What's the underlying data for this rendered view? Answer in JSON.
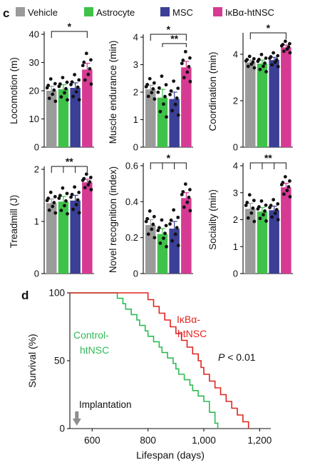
{
  "panel_labels": {
    "c": "c",
    "d": "d"
  },
  "colors": {
    "Vehicle": "#9b9b9b",
    "Astrocyte": "#3ec24a",
    "MSC": "#3b3f96",
    "IκBα-htNSC": "#d63a93",
    "survival_control": "#2dbb55",
    "survival_ikba": "#e0251f"
  },
  "chart_data": [
    {
      "type": "bar",
      "ylabel": "Locomotion (m)",
      "ylim": [
        0,
        40
      ],
      "categories": [
        "Vehicle",
        "Astrocyte",
        "MSC",
        "IκBα-htNSC"
      ],
      "values": [
        20,
        20.5,
        21,
        27.5
      ],
      "errors": [
        1.6,
        1.6,
        1.8,
        2.2
      ],
      "yticks": [
        "0",
        "10",
        "20",
        "30",
        "40"
      ],
      "significance": [
        {
          "from": 0,
          "to": 3,
          "label": "*"
        }
      ]
    },
    {
      "type": "bar",
      "ylabel": "Muscle endurance (min)",
      "ylim": [
        0,
        4
      ],
      "categories": [
        "Vehicle",
        "Astrocyte",
        "MSC",
        "IκBα-htNSC"
      ],
      "values": [
        2.1,
        1.8,
        1.75,
        2.9
      ],
      "errors": [
        0.15,
        0.3,
        0.25,
        0.22
      ],
      "yticks": [
        "0",
        "1",
        "2",
        "3",
        "4"
      ],
      "significance": [
        {
          "from": 0,
          "to": 3,
          "label": "*"
        },
        {
          "from": 1,
          "to": 3,
          "label": "**"
        }
      ]
    },
    {
      "type": "bar",
      "ylabel": "Coordination (min)",
      "ylim": [
        0,
        4.8
      ],
      "categories": [
        "Vehicle",
        "Astrocyte",
        "MSC",
        "IκBα-htNSC"
      ],
      "values": [
        3.65,
        3.6,
        3.75,
        4.3
      ],
      "errors": [
        0.1,
        0.15,
        0.12,
        0.1
      ],
      "yticks": [
        "0",
        "2",
        "4"
      ],
      "significance": [
        {
          "from": 0,
          "to": 3,
          "label": "*"
        }
      ]
    },
    {
      "type": "bar",
      "ylabel": "Treadmill (J)",
      "ylim": [
        0,
        2
      ],
      "categories": [
        "Vehicle",
        "Astrocyte",
        "MSC",
        "IκBα-htNSC"
      ],
      "values": [
        1.35,
        1.38,
        1.4,
        1.75
      ],
      "errors": [
        0.08,
        0.1,
        0.1,
        0.06
      ],
      "yticks": [
        "0",
        "1",
        "2"
      ],
      "significance": [
        {
          "from": 0,
          "to": 3,
          "label": "**"
        }
      ]
    },
    {
      "type": "bar",
      "ylabel": "Novel recognition (index)",
      "ylim": [
        0,
        0.6
      ],
      "categories": [
        "Vehicle",
        "Astrocyte",
        "MSC",
        "IκBα-htNSC"
      ],
      "values": [
        0.27,
        0.22,
        0.25,
        0.42
      ],
      "errors": [
        0.03,
        0.03,
        0.04,
        0.03
      ],
      "yticks": [
        "0",
        "0.2",
        "0.4",
        "0.6"
      ],
      "significance": [
        {
          "from": 0,
          "to": 3,
          "label": "*"
        }
      ]
    },
    {
      "type": "bar",
      "ylabel": "Sociality (min)",
      "ylim": [
        0,
        4
      ],
      "categories": [
        "Vehicle",
        "Astrocyte",
        "MSC",
        "IκBα-htNSC"
      ],
      "values": [
        2.4,
        2.3,
        2.35,
        3.2
      ],
      "errors": [
        0.2,
        0.15,
        0.15,
        0.15
      ],
      "yticks": [
        "0",
        "1",
        "2",
        "3",
        "4"
      ],
      "significance": [
        {
          "from": 0,
          "to": 3,
          "label": "**"
        }
      ]
    },
    {
      "type": "line",
      "xlabel": "Lifespan (days)",
      "ylabel": "Survival (%)",
      "xlim": [
        520,
        1240
      ],
      "ylim": [
        0,
        100
      ],
      "xticks": [
        "600",
        "800",
        "1,000",
        "1,200"
      ],
      "xtick_values": [
        600,
        800,
        1000,
        1200
      ],
      "yticks": [
        "0",
        "50",
        "100"
      ],
      "series": [
        {
          "name": "Control-htNSC",
          "x": [
            520,
            680,
            690,
            710,
            720,
            740,
            760,
            770,
            790,
            800,
            820,
            840,
            850,
            870,
            890,
            900,
            910,
            930,
            950,
            960,
            980,
            1000,
            1020,
            1040,
            1050
          ],
          "y": [
            100,
            100,
            96,
            92,
            88,
            84,
            80,
            76,
            72,
            68,
            64,
            60,
            56,
            52,
            48,
            44,
            40,
            36,
            32,
            28,
            24,
            20,
            12,
            4,
            0
          ]
        },
        {
          "name": "IκBα-htNSC",
          "x": [
            520,
            790,
            800,
            820,
            840,
            860,
            880,
            900,
            920,
            940,
            960,
            980,
            990,
            1000,
            1020,
            1040,
            1060,
            1080,
            1100,
            1120,
            1140,
            1160
          ],
          "y": [
            100,
            100,
            95,
            90,
            85,
            80,
            75,
            70,
            65,
            60,
            55,
            50,
            45,
            40,
            35,
            30,
            25,
            20,
            15,
            10,
            5,
            0
          ]
        }
      ],
      "annotations": {
        "control_line1": "Control-",
        "control_line2": "htNSC",
        "ikba_line1": "IκBα-",
        "ikba_line2": "htNSC",
        "pvalue_p": "P",
        "pvalue_rest": " < 0.01",
        "implantation": "Implantation",
        "implantation_day": 545
      }
    }
  ]
}
